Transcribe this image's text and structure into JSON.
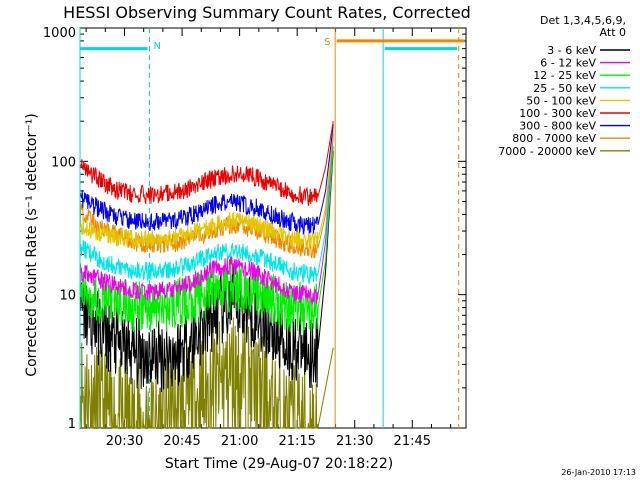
{
  "chart_data": {
    "type": "line",
    "title": "HESSI Observing Summary Count Rates, Corrected",
    "xlabel": "Start Time (29-Aug-07 20:18:22)",
    "ylabel": "Corrected Count Rate (s⁻¹ detector⁻¹)",
    "y_scale": "log",
    "xlim_minutes_after_start": [
      0,
      100.6
    ],
    "ylim": [
      1,
      1000
    ],
    "x_ticks": [
      {
        "label": "20:30",
        "minutes": 11.6
      },
      {
        "label": "20:45",
        "minutes": 26.6
      },
      {
        "label": "21:00",
        "minutes": 41.6
      },
      {
        "label": "21:15",
        "minutes": 56.6
      },
      {
        "label": "21:30",
        "minutes": 71.6
      },
      {
        "label": "21:45",
        "minutes": 86.6
      }
    ],
    "y_ticks": [
      {
        "label": "1",
        "value": 1
      },
      {
        "label": "10",
        "value": 10
      },
      {
        "label": "100",
        "value": 100
      },
      {
        "label": "1000",
        "value": 1000
      }
    ],
    "legend_header": [
      "Det 1,3,4,5,6,9,",
      "Att 0"
    ],
    "legend_placement": "right",
    "series": [
      {
        "name": "3 - 6 keV",
        "color": "#000000",
        "x_minutes": [
          0,
          5,
          10,
          15,
          20,
          25,
          30,
          35,
          40,
          45,
          50,
          55,
          60,
          62,
          64,
          66
        ],
        "y": [
          8,
          5.5,
          4.2,
          3.6,
          3.5,
          3.6,
          4.8,
          7,
          8.5,
          7.5,
          5.5,
          4.2,
          3.8,
          3.8,
          15,
          120
        ]
      },
      {
        "name": "6 - 12 keV",
        "color": "#ee00ee",
        "x_minutes": [
          0,
          5,
          10,
          15,
          20,
          25,
          30,
          35,
          40,
          45,
          50,
          55,
          60,
          62,
          64,
          66
        ],
        "y": [
          15,
          13,
          11.5,
          10.5,
          10.5,
          11,
          13,
          15.5,
          16.5,
          15,
          12.5,
          10.5,
          9.8,
          9.8,
          25,
          160
        ]
      },
      {
        "name": "12 - 25 keV",
        "color": "#00ee00",
        "x_minutes": [
          0,
          5,
          10,
          15,
          20,
          25,
          30,
          35,
          40,
          45,
          50,
          55,
          60,
          62,
          64,
          66
        ],
        "y": [
          11,
          9.5,
          8.5,
          8,
          8,
          8.4,
          9.5,
          11,
          11.5,
          11,
          9.5,
          8.2,
          7.8,
          7.8,
          18,
          130
        ]
      },
      {
        "name": "25 - 50 keV",
        "color": "#00e5e5",
        "x_minutes": [
          0,
          5,
          10,
          15,
          20,
          25,
          30,
          35,
          40,
          45,
          50,
          55,
          60,
          62,
          64,
          66
        ],
        "y": [
          23,
          18.5,
          16,
          15,
          15,
          15.5,
          17.5,
          20.5,
          21.5,
          20,
          17.5,
          15,
          14.2,
          14.2,
          30,
          170
        ]
      },
      {
        "name": "50 - 100 keV",
        "color": "#e5c500",
        "x_minutes": [
          0,
          5,
          10,
          15,
          20,
          25,
          30,
          35,
          40,
          45,
          50,
          55,
          60,
          62,
          64,
          66
        ],
        "y": [
          33,
          29,
          27,
          26,
          26,
          26.5,
          29.5,
          34,
          36,
          34,
          30,
          26.5,
          25.5,
          25.5,
          45,
          180
        ]
      },
      {
        "name": "100 - 300 keV",
        "color": "#ee0000",
        "x_minutes": [
          0,
          5,
          10,
          15,
          20,
          25,
          30,
          35,
          40,
          45,
          50,
          55,
          60,
          62,
          64,
          66
        ],
        "y": [
          95,
          72,
          60,
          56,
          56,
          58,
          65,
          75,
          80,
          77,
          67,
          58,
          54,
          54,
          90,
          200
        ]
      },
      {
        "name": "300 - 800 keV",
        "color": "#0000ee",
        "x_minutes": [
          0,
          5,
          10,
          15,
          20,
          25,
          30,
          35,
          40,
          45,
          50,
          55,
          60,
          62,
          64,
          66
        ],
        "y": [
          53,
          44,
          38,
          35,
          35,
          36,
          40,
          47,
          49.5,
          46,
          40,
          35,
          33,
          33,
          60,
          190
        ]
      },
      {
        "name": "800 - 7000 keV",
        "color": "#ee8800",
        "x_minutes": [
          0,
          5,
          10,
          15,
          20,
          25,
          30,
          35,
          40,
          45,
          50,
          55,
          60,
          62,
          64,
          66
        ],
        "y": [
          42,
          32,
          28,
          24.5,
          24,
          24.5,
          27,
          31,
          33,
          31,
          27,
          23.5,
          22,
          22,
          40,
          170
        ]
      },
      {
        "name": "7000 - 20000 keV",
        "color": "#808000",
        "x_minutes": [
          0,
          3,
          6,
          12,
          20,
          28,
          35,
          40,
          45,
          50,
          55,
          60,
          62,
          64,
          66
        ],
        "y": [
          2,
          1.5,
          1.3,
          1,
          1,
          1.4,
          2,
          2.6,
          2,
          1.3,
          1,
          1,
          1,
          2,
          4
        ]
      }
    ],
    "flags": [
      {
        "label": "N",
        "color": "#00d8d8",
        "from_minutes": 0,
        "to_minutes": 18.1
      },
      {
        "label": "S",
        "color": "#ee8800",
        "from_minutes": 66.5,
        "to_minutes": 100.6
      }
    ],
    "vertical_lines": [
      {
        "minutes": 18.1,
        "color": "#00d8d8",
        "dashed": true
      },
      {
        "minutes": 66.5,
        "color": "#ee8800",
        "dashed": false
      },
      {
        "minutes": 79.0,
        "color": "#00d8d8",
        "dashed": false
      },
      {
        "minutes": 98.7,
        "color": "#ee8800",
        "dashed": true
      }
    ],
    "attenuator_bars": [
      {
        "color": "#00d8d8",
        "from_minutes": 0,
        "to_minutes": 17.6,
        "level": 700
      },
      {
        "color": "#ee8800",
        "from_minutes": 66.9,
        "to_minutes": 100.2,
        "level": 800
      },
      {
        "color": "#00d8d8",
        "from_minutes": 79.4,
        "to_minutes": 98.3,
        "level": 700
      }
    ],
    "grid": false
  },
  "footer": {
    "timestamp": "26-Jan-2010 17:13"
  }
}
